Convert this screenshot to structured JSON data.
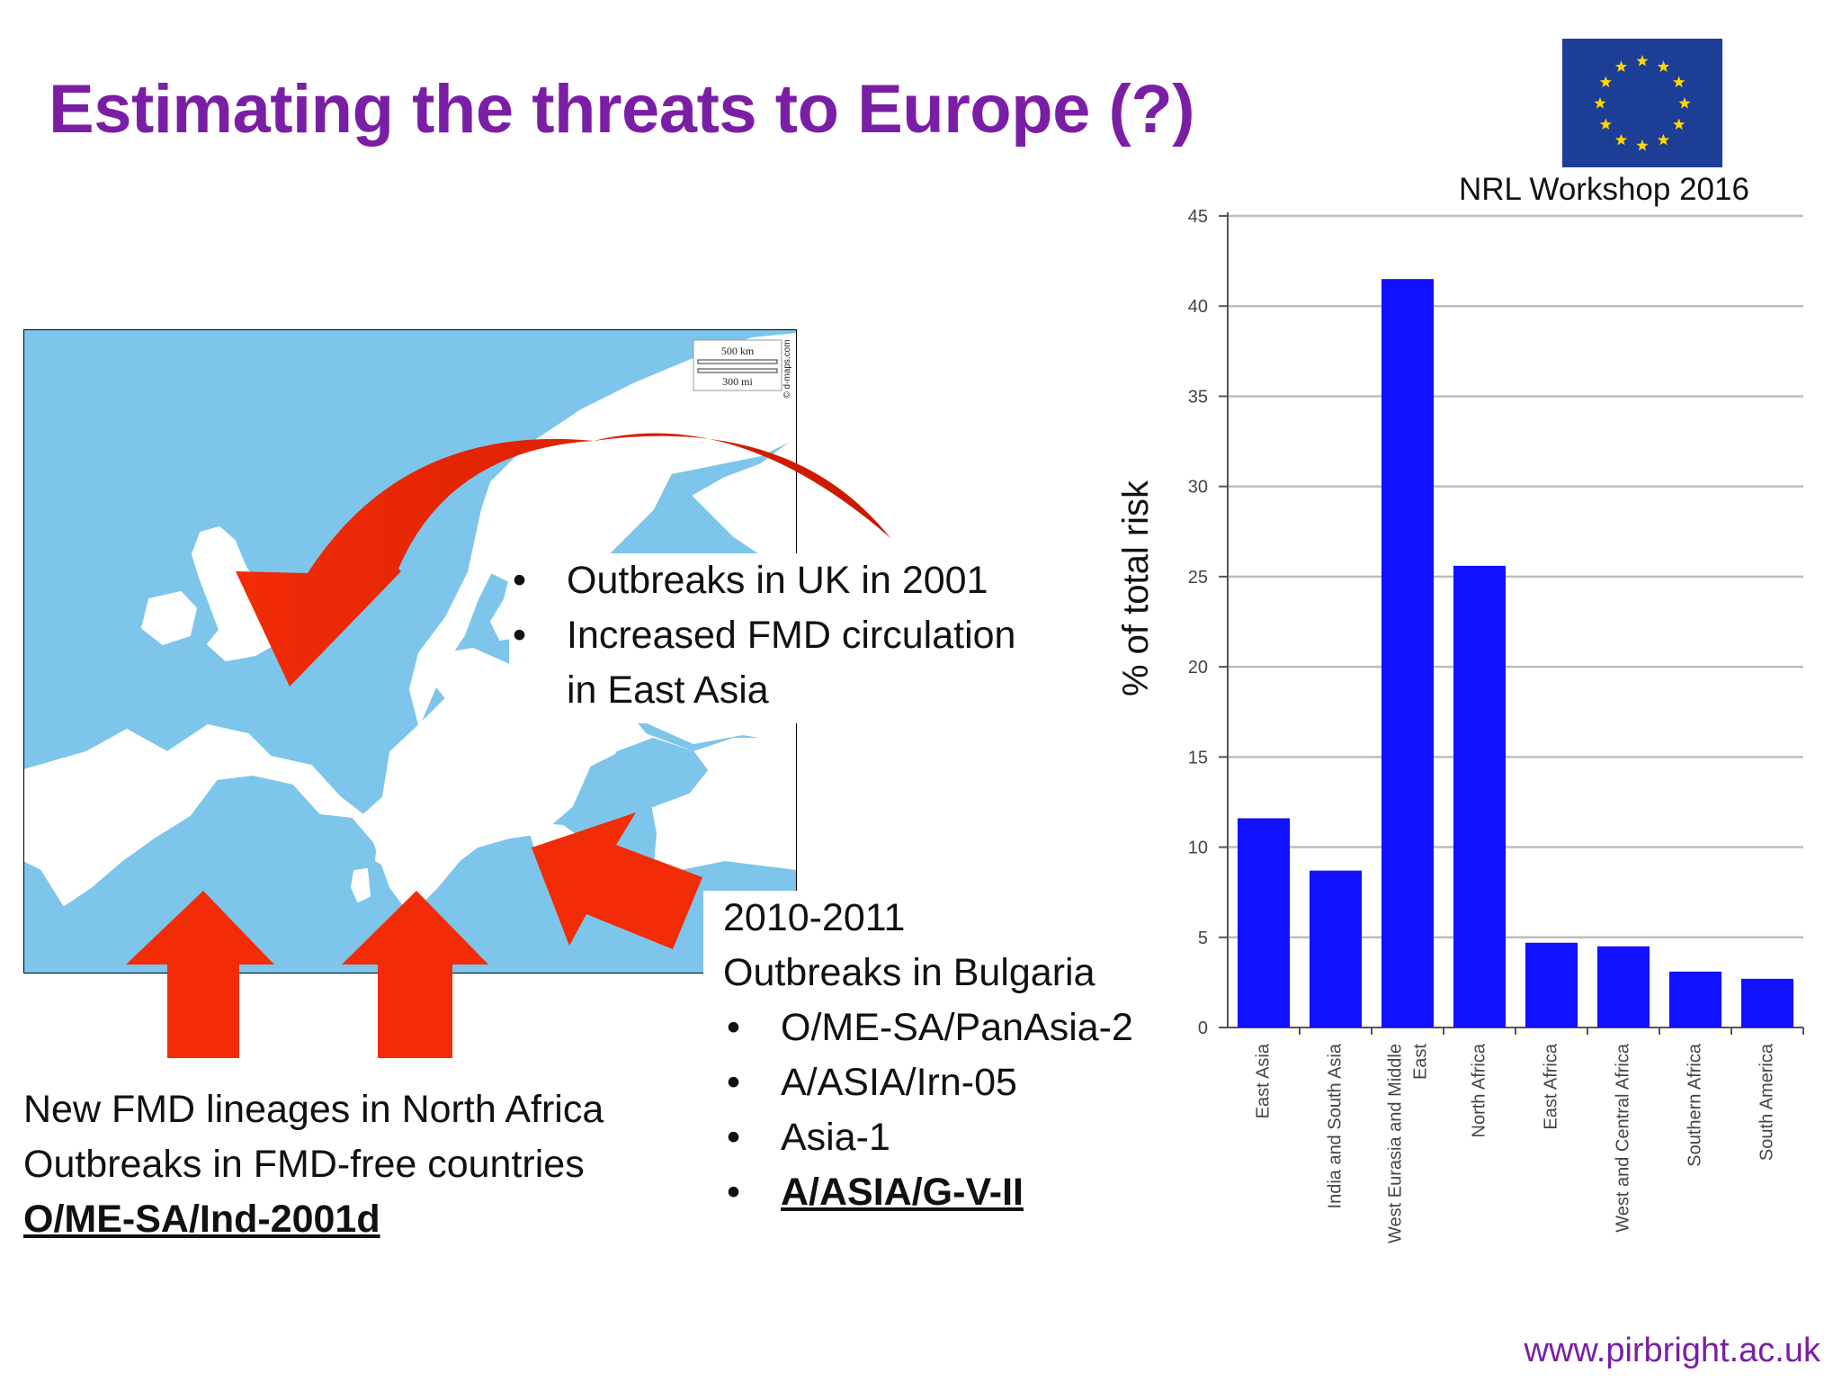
{
  "header": {
    "title": "Estimating the threats to Europe (?)"
  },
  "badge": {
    "workshop_label": "NRL Workshop 2016",
    "flag_icon": "eu-flag-icon"
  },
  "map": {
    "scale_km": "500 km",
    "scale_mi": "300 mi",
    "credit": "© d-maps.com",
    "colors": {
      "sea": "#7dc5eb",
      "land": "#ffffff",
      "arrow": "#f22c07"
    }
  },
  "notes": {
    "uk": {
      "bullets": [
        "Outbreaks in UK in 2001",
        "Increased FMD circulation"
      ],
      "continuation": "in East Asia"
    },
    "bulgaria": {
      "line1": "2010-2011",
      "line2": "Outbreaks in Bulgaria",
      "bullets": [
        "O/ME-SA/PanAsia-2",
        "A/ASIA/Irn-05",
        "Asia-1"
      ],
      "bullet_bold": "A/ASIA/G-V-II"
    },
    "africa": {
      "line1": "New FMD lineages in North Africa",
      "line2": "Outbreaks in FMD-free countries",
      "lineage": "O/ME-SA/Ind-2001d"
    }
  },
  "chart_data": {
    "type": "bar",
    "title": "",
    "xlabel": "",
    "ylabel": "% of total risk",
    "ylim": [
      0,
      45
    ],
    "yticks": [
      0,
      5,
      10,
      15,
      20,
      25,
      30,
      35,
      40,
      45
    ],
    "grid": true,
    "bar_color": "#1111ff",
    "categories": [
      [
        "East Asia"
      ],
      [
        "India and South Asia"
      ],
      [
        "West Eurasia and Middle",
        "East"
      ],
      [
        "North Africa"
      ],
      [
        "East Africa"
      ],
      [
        "West and Central Africa"
      ],
      [
        "Southern Africa"
      ],
      [
        "South America"
      ]
    ],
    "values": [
      11.6,
      8.7,
      41.5,
      25.6,
      4.7,
      4.5,
      3.1,
      2.7
    ]
  },
  "footer": {
    "url": "www.pirbright.ac.uk"
  }
}
